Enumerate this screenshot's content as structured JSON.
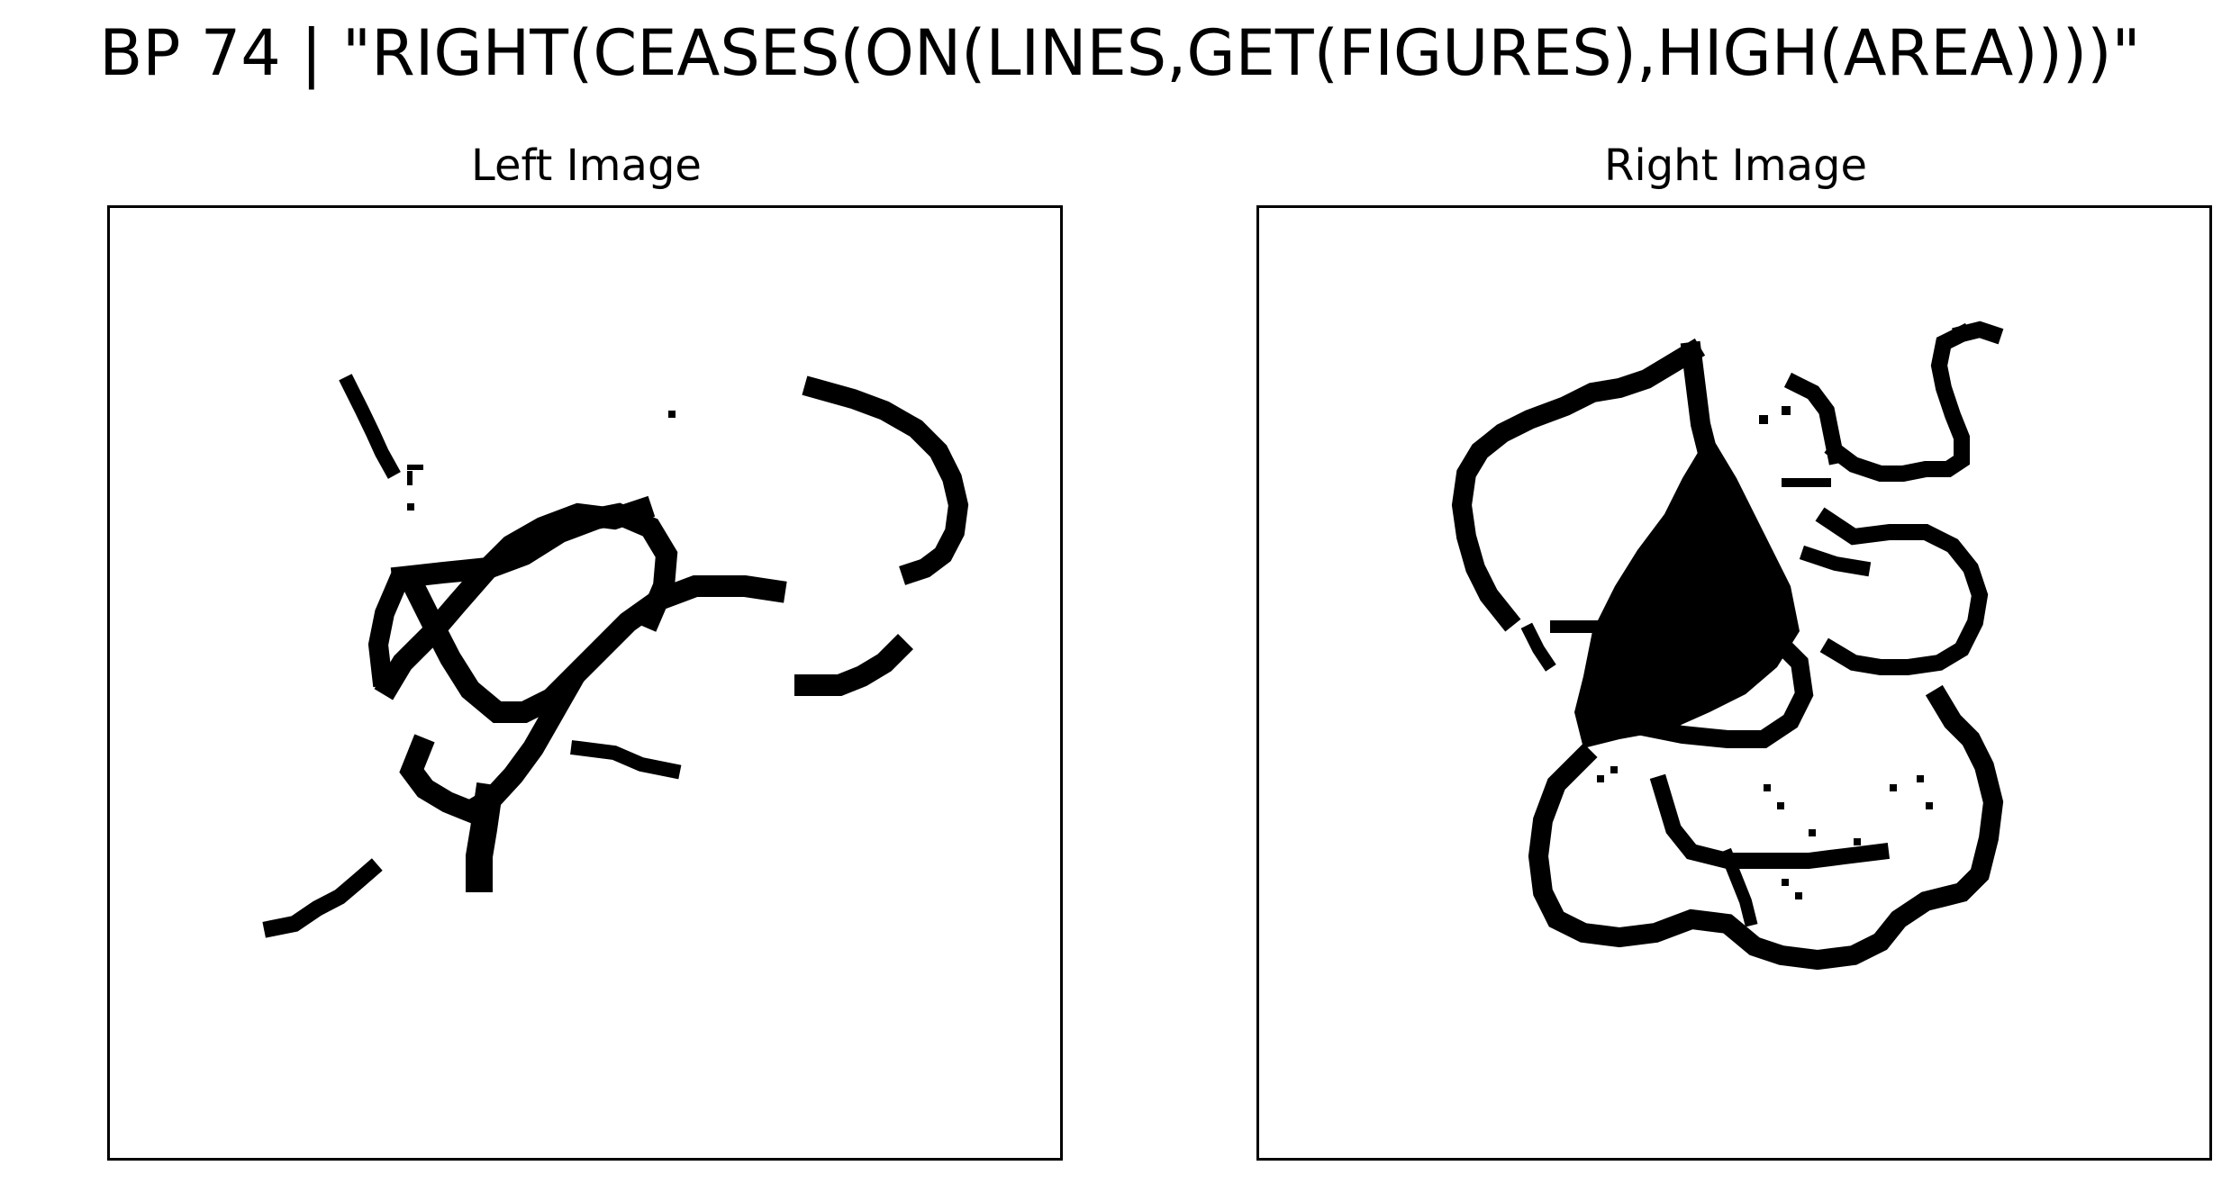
{
  "figure": {
    "title": "BP 74 | \"RIGHT(CEASES(ON(LINES,GET(FIGURES),HIGH(AREA))))\""
  },
  "panels": [
    {
      "title": "Left Image"
    },
    {
      "title": "Right Image"
    }
  ],
  "colors": {
    "background": "#ffffff",
    "ink": "#000000",
    "frame": "#000000"
  }
}
